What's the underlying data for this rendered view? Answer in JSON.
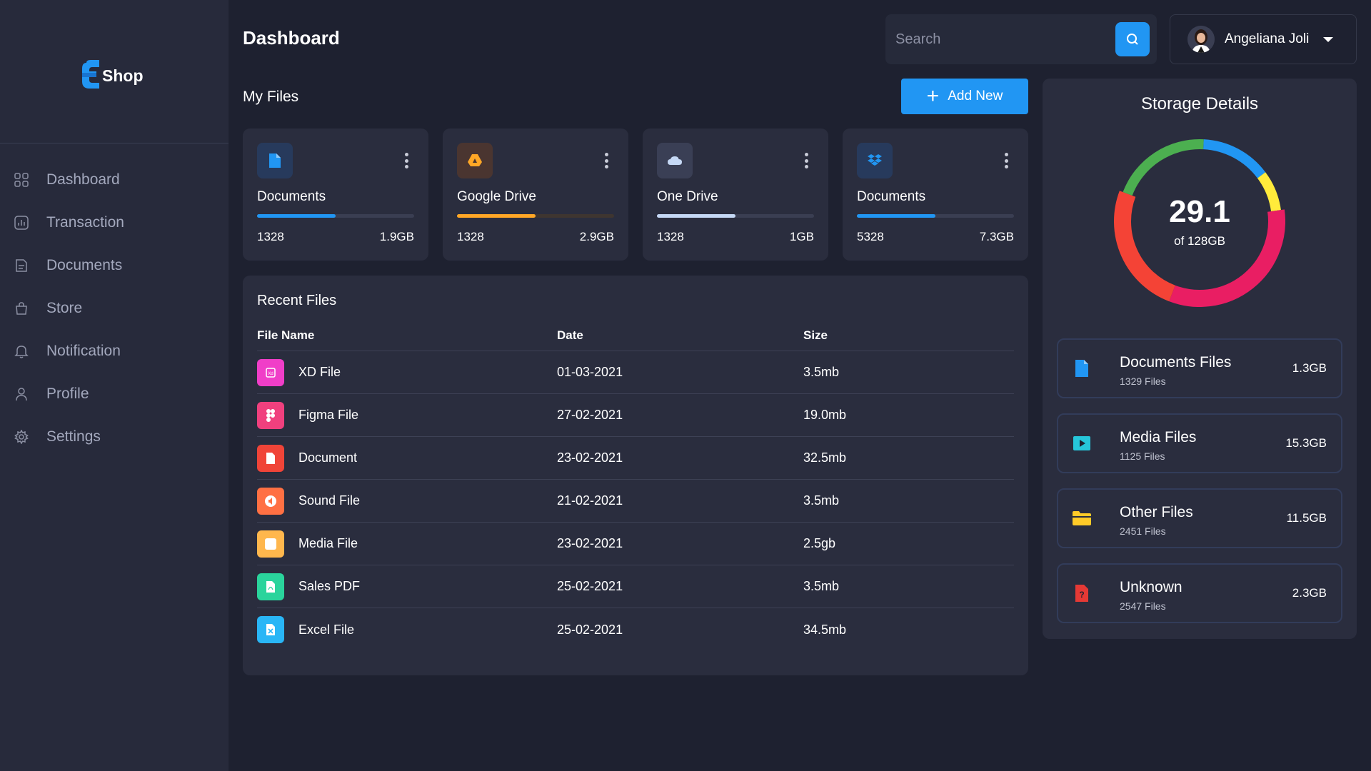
{
  "brand": {
    "name": "Shop"
  },
  "nav": [
    {
      "label": "Dashboard",
      "icon": "grid-icon"
    },
    {
      "label": "Transaction",
      "icon": "chart-icon"
    },
    {
      "label": "Documents",
      "icon": "document-icon"
    },
    {
      "label": "Store",
      "icon": "bag-icon"
    },
    {
      "label": "Notification",
      "icon": "bell-icon"
    },
    {
      "label": "Profile",
      "icon": "user-icon"
    },
    {
      "label": "Settings",
      "icon": "gear-icon"
    }
  ],
  "header": {
    "title": "Dashboard",
    "search_placeholder": "Search",
    "user_name": "Angeliana Joli"
  },
  "my_files": {
    "title": "My Files",
    "add_label": "Add New",
    "cards": [
      {
        "name": "Documents",
        "count": "1328",
        "size": "1.9GB",
        "progress": 0.5,
        "color": "#2196f3",
        "icon": "document-icon"
      },
      {
        "name": "Google Drive",
        "count": "1328",
        "size": "2.9GB",
        "progress": 0.5,
        "color": "#ffa726",
        "icon": "google-drive-icon"
      },
      {
        "name": "One Drive",
        "count": "1328",
        "size": "1GB",
        "progress": 0.5,
        "color": "#c5d8f5",
        "icon": "cloud-icon"
      },
      {
        "name": "Documents",
        "count": "5328",
        "size": "7.3GB",
        "progress": 0.5,
        "color": "#2196f3",
        "icon": "dropbox-icon"
      }
    ]
  },
  "recent": {
    "title": "Recent Files",
    "columns": [
      "File Name",
      "Date",
      "Size"
    ],
    "rows": [
      {
        "name": "XD File",
        "date": "01-03-2021",
        "size": "3.5mb",
        "color": "#f03ec8",
        "icon": "xd-file-icon"
      },
      {
        "name": "Figma File",
        "date": "27-02-2021",
        "size": "19.0mb",
        "color": "#f0407e",
        "icon": "figma-icon"
      },
      {
        "name": "Document",
        "date": "23-02-2021",
        "size": "32.5mb",
        "color": "#f04438",
        "icon": "document-icon"
      },
      {
        "name": "Sound File",
        "date": "21-02-2021",
        "size": "3.5mb",
        "color": "#ff7043",
        "icon": "sound-icon"
      },
      {
        "name": "Media File",
        "date": "23-02-2021",
        "size": "2.5gb",
        "color": "#ffb74d",
        "icon": "media-icon"
      },
      {
        "name": "Sales PDF",
        "date": "25-02-2021",
        "size": "3.5mb",
        "color": "#2ad49c",
        "icon": "pdf-icon"
      },
      {
        "name": "Excel File",
        "date": "25-02-2021",
        "size": "34.5mb",
        "color": "#29b6f6",
        "icon": "excel-icon"
      }
    ]
  },
  "storage": {
    "title": "Storage Details",
    "used": "29.1",
    "total_label": "of 128GB",
    "segments": [
      {
        "color": "#2196f3",
        "fraction": 0.14
      },
      {
        "color": "#ffeb3b",
        "fraction": 0.08
      },
      {
        "color": "#e91e63",
        "fraction": 0.33
      },
      {
        "color": "#f44336",
        "fraction": 0.25
      },
      {
        "color": "#4caf50",
        "fraction": 0.2
      }
    ],
    "categories": [
      {
        "name": "Documents Files",
        "count": "1329 Files",
        "size": "1.3GB",
        "icon": "document-icon",
        "color": "#2196f3"
      },
      {
        "name": "Media Files",
        "count": "1125 Files",
        "size": "15.3GB",
        "icon": "media-play-icon",
        "color": "#26c6da"
      },
      {
        "name": "Other Files",
        "count": "2451 Files",
        "size": "11.5GB",
        "icon": "folder-icon",
        "color": "#ffca28"
      },
      {
        "name": "Unknown",
        "count": "2547 Files",
        "size": "2.3GB",
        "icon": "unknown-file-icon",
        "color": "#e53935"
      }
    ]
  }
}
